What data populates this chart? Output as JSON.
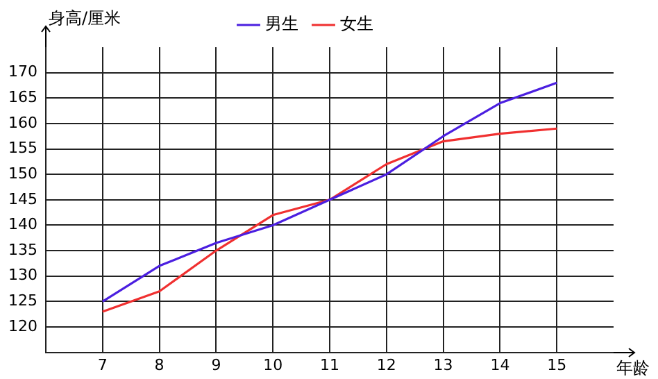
{
  "chart_data": {
    "type": "line",
    "xlabel": "年龄",
    "ylabel": "身高/厘米",
    "x": [
      7,
      8,
      9,
      10,
      11,
      12,
      13,
      14,
      15
    ],
    "series": [
      {
        "name": "男生",
        "color": "#4b1fe0",
        "values": [
          125,
          132,
          136.5,
          140,
          145,
          150,
          157.5,
          164,
          168
        ]
      },
      {
        "name": "女生",
        "color": "#f03030",
        "values": [
          123,
          127,
          135,
          142,
          145,
          152,
          156.5,
          158,
          159
        ]
      }
    ],
    "xlim": [
      6,
      16
    ],
    "xticks": [
      7,
      8,
      9,
      10,
      11,
      12,
      13,
      14,
      15
    ],
    "ylim": [
      115,
      175
    ],
    "yticks": [
      120,
      125,
      130,
      135,
      140,
      145,
      150,
      155,
      160,
      165,
      170
    ],
    "grid": true,
    "legend": "top",
    "marker": "none",
    "line_style": "solid"
  }
}
